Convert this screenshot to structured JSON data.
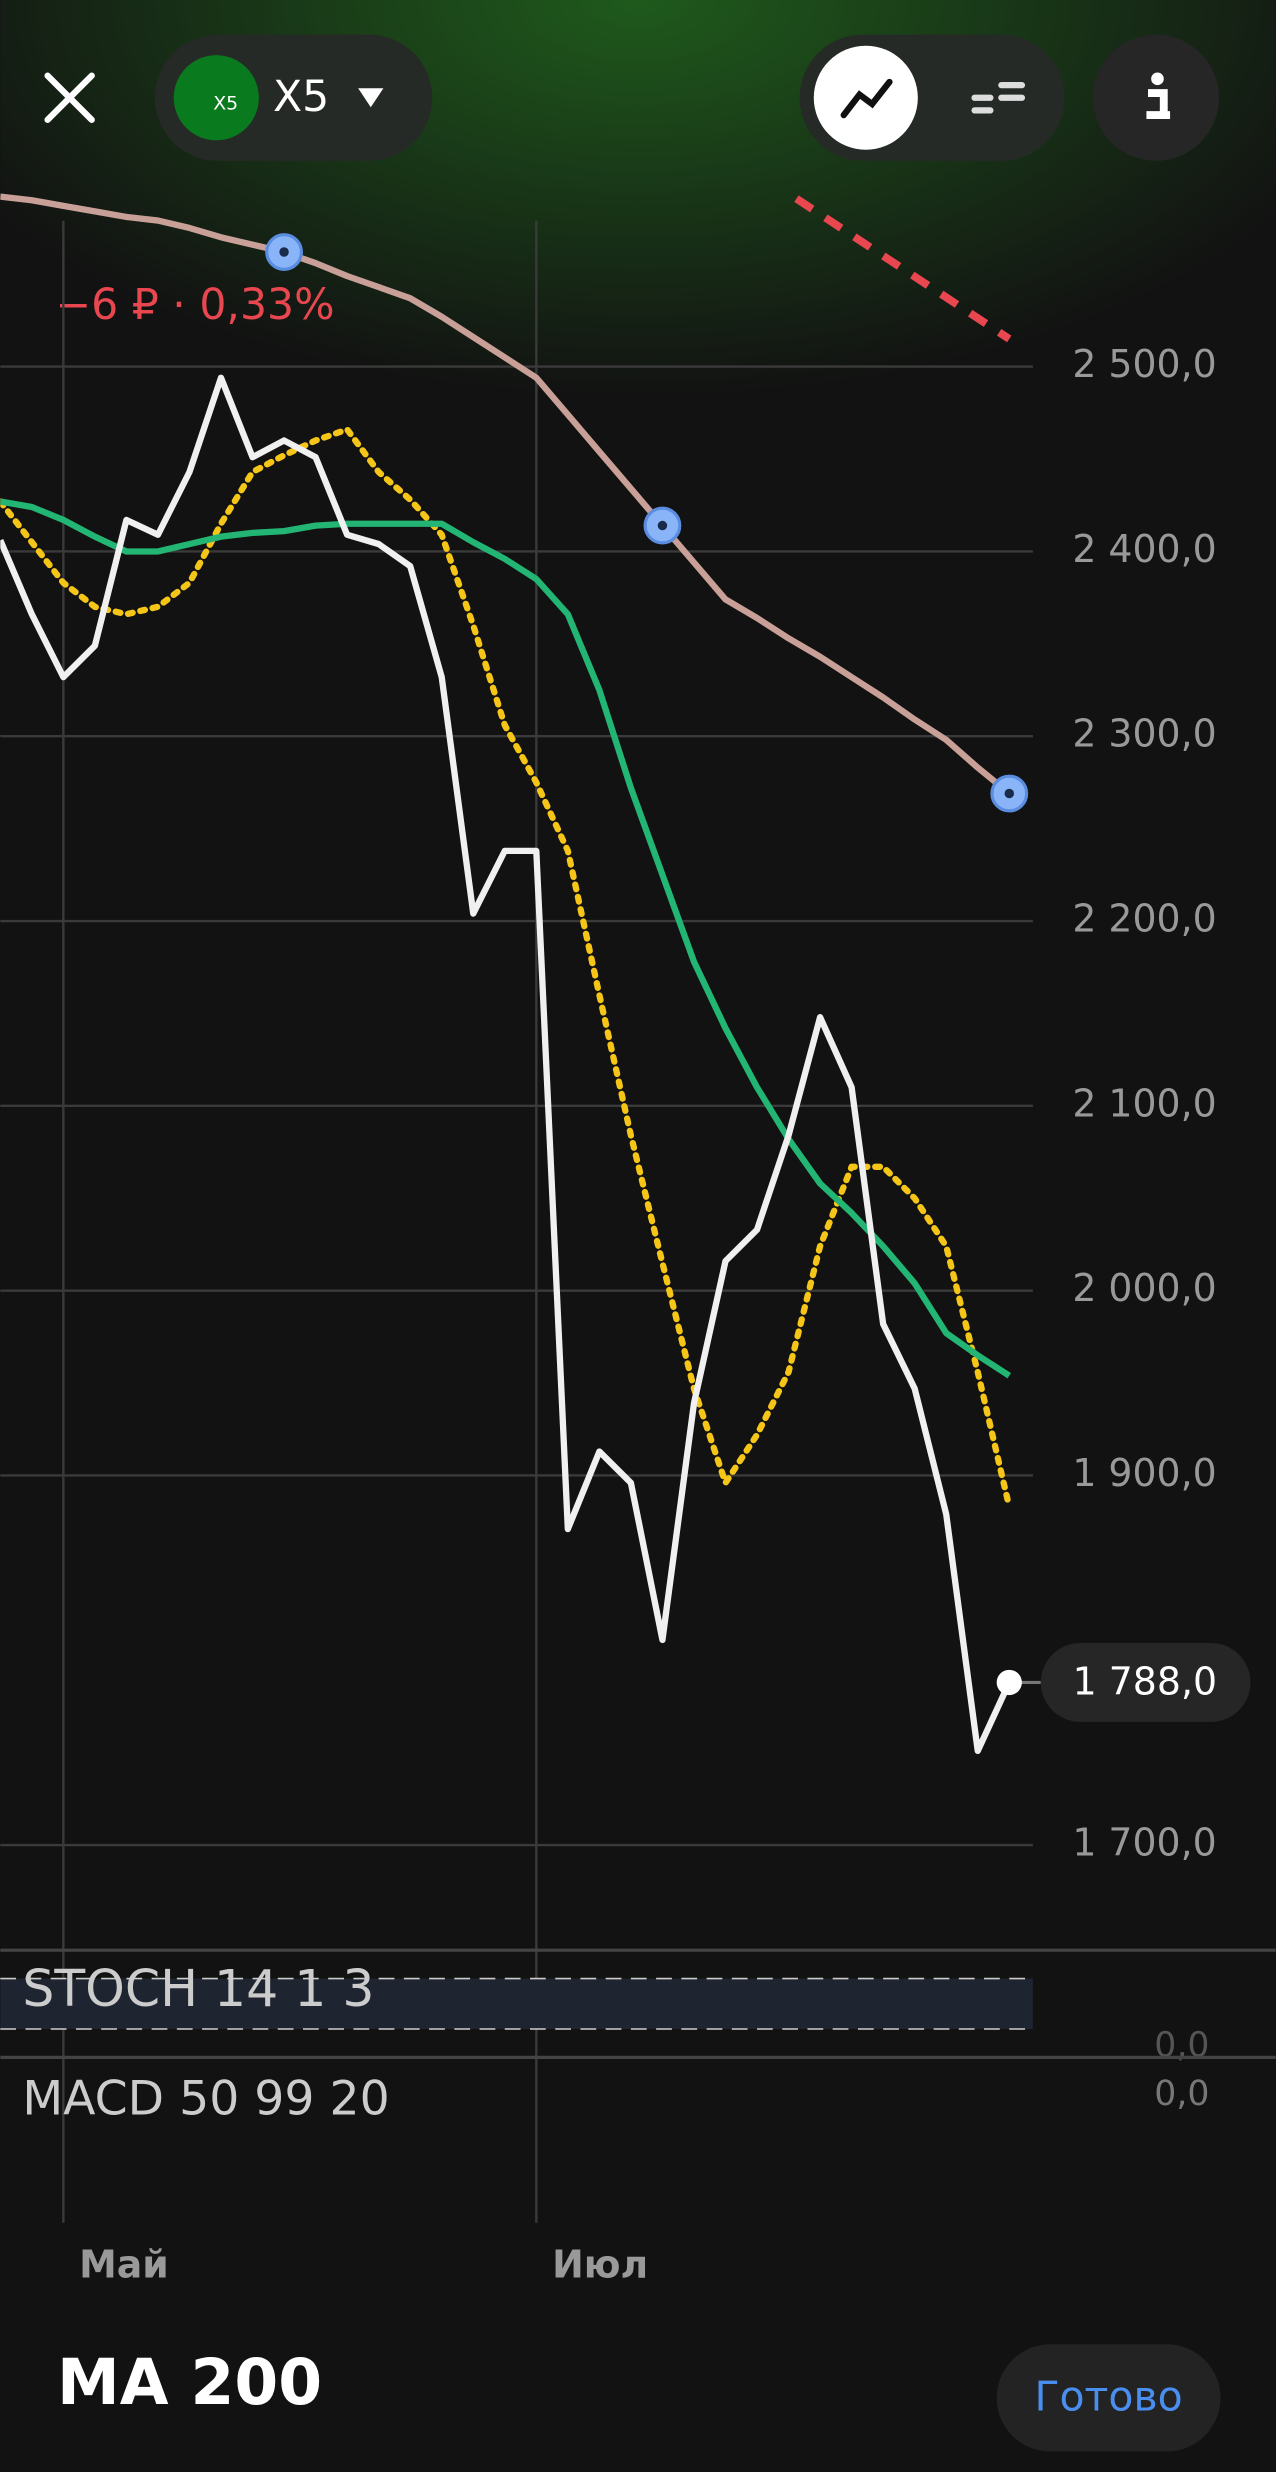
{
  "header": {
    "logo": "X5",
    "ticker": "X5"
  },
  "change": "−6 ₽ · 0,33%",
  "chart_data": {
    "type": "line",
    "categories": [
      null,
      null,
      "Май",
      null,
      null,
      null,
      null,
      null,
      null,
      null,
      null,
      null,
      null,
      null,
      null,
      null,
      null,
      "Июл",
      null,
      null,
      null,
      null,
      null,
      null,
      null,
      null,
      null,
      null,
      null,
      null,
      null,
      null,
      null
    ],
    "series": [
      {
        "color": "#f0f0f0",
        "style": "solid",
        "values": [
          2406,
          2366,
          2332,
          2349,
          2417,
          2409,
          2443,
          2494,
          2451,
          2460,
          2451,
          2409,
          2404,
          2392,
          2332,
          2204,
          2238,
          2238,
          1871,
          1913,
          1896,
          1811,
          1939,
          2016,
          2033,
          2084,
          2148,
          2110,
          1982,
          1947,
          1879,
          1751,
          1788
        ]
      },
      {
        "color": "#22b573",
        "style": "solid",
        "values": [
          2427,
          2424,
          2417,
          2408,
          2400,
          2400,
          2404,
          2408,
          2410,
          2411,
          2414,
          2415,
          2415,
          2415,
          2415,
          2405,
          2396,
          2385,
          2366,
          2325,
          2272,
          2225,
          2178,
          2142,
          2110,
          2082,
          2058,
          2042,
          2024,
          2004,
          1977,
          1965,
          1954
        ]
      },
      {
        "color": "#f5c518",
        "style": "dotted",
        "values": [
          2427,
          2405,
          2383,
          2370,
          2366,
          2370,
          2383,
          2415,
          2443,
          2452,
          2460,
          2466,
          2443,
          2428,
          2409,
          2360,
          2306,
          2275,
          2238,
          2160,
          2084,
          2015,
          1947,
          1896,
          1922,
          1956,
          2024,
          2067,
          2067,
          2050,
          2024,
          1956,
          1883
        ]
      },
      {
        "color": "#c9a097",
        "style": "solid",
        "values": [
          2592,
          2590,
          2587,
          2584,
          2581,
          2579,
          2575,
          2570,
          2566,
          2562,
          2556,
          2549,
          2543,
          2537,
          2527,
          2516,
          2505,
          2494,
          2474,
          2454,
          2434,
          2414,
          2394,
          2374,
          2364,
          2353,
          2343,
          2332,
          2321,
          2309,
          2298,
          2283,
          2269
        ]
      }
    ],
    "ylim": [
      1644,
      2596
    ],
    "yticks": [
      {
        "value": 1700,
        "label": "1 700,0"
      },
      {
        "value": 1900,
        "label": "1 900,0"
      },
      {
        "value": 2000,
        "label": "2 000,0"
      },
      {
        "value": 2100,
        "label": "2 100,0"
      },
      {
        "value": 2200,
        "label": "2 200,0"
      },
      {
        "value": 2300,
        "label": "2 300,0"
      },
      {
        "value": 2400,
        "label": "2 400,0"
      },
      {
        "value": 2500,
        "label": "2 500,0"
      }
    ],
    "current": {
      "value": 1788,
      "label": "1 788,0"
    },
    "grid": true
  },
  "indicators": {
    "stoch": "STOCH 14 1 3",
    "stoch_zero": "0,0",
    "macd": "MACD 50 99 20",
    "macd_zero": "0,0"
  },
  "footer": {
    "title": "MA 200",
    "done": "Готово"
  }
}
